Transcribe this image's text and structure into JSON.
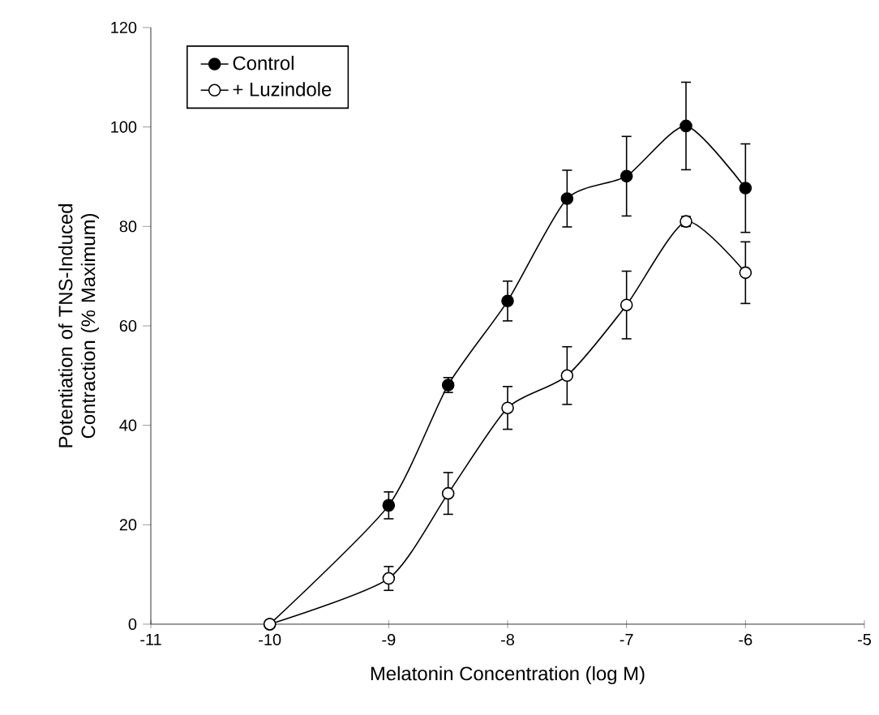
{
  "chart_data": {
    "type": "line",
    "xlabel": "Melatonin Concentration (log M)",
    "ylabel": "Potentiation of TNS-Induced Contraction (% Maximum)",
    "x": [
      -10,
      -9,
      -8.5,
      -8,
      -7.5,
      -7,
      -6.5,
      -6
    ],
    "series": [
      {
        "name": "Control",
        "color": "#000000",
        "values": [
          0,
          23.9,
          48.1,
          65,
          85.6,
          90.1,
          100.2,
          87.7
        ],
        "errors": [
          null,
          2.7,
          1.5,
          4,
          5.7,
          8,
          8.8,
          8.9
        ]
      },
      {
        "name": "+ Luzindole",
        "color": "#000000",
        "values": [
          0,
          9.2,
          26.3,
          43.5,
          50,
          64.2,
          81,
          70.7
        ],
        "errors": [
          null,
          2.4,
          4.2,
          4.3,
          5.8,
          6.8,
          1,
          6.2
        ]
      }
    ],
    "xlim": [
      -11,
      -5
    ],
    "xticks": [
      -11,
      -10,
      -9,
      -8,
      -7,
      -6,
      -5
    ],
    "ylim": [
      0,
      120
    ],
    "yticks": [
      0,
      20,
      40,
      60,
      80,
      100,
      120
    ],
    "marker": "circle",
    "line_style": "solid",
    "legend": "top left",
    "grid": false
  }
}
